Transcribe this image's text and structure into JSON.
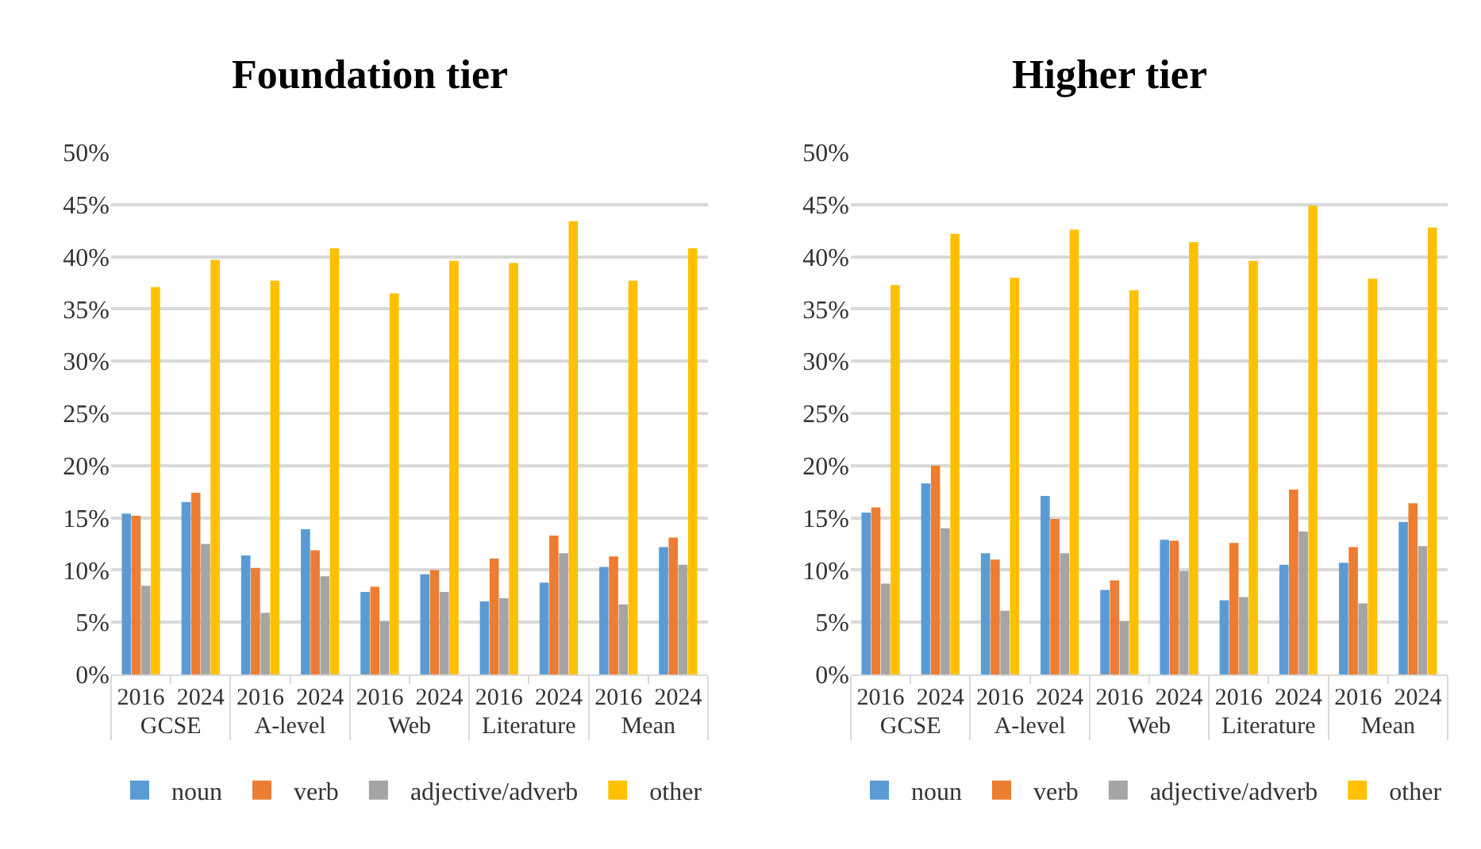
{
  "chart_data": [
    {
      "type": "bar",
      "title": "Foundation tier",
      "categories": [
        "2016",
        "2024",
        "2016",
        "2024",
        "2016",
        "2024",
        "2016",
        "2024",
        "2016",
        "2024"
      ],
      "annotations": [
        "GCSE",
        "A-level",
        "Web",
        "Literature",
        "Mean"
      ],
      "ylim": [
        0,
        50
      ],
      "yticks": [
        {
          "value": 0,
          "label": "0%"
        },
        {
          "value": 5,
          "label": "5%"
        },
        {
          "value": 10,
          "label": "10%"
        },
        {
          "value": 15,
          "label": "15%"
        },
        {
          "value": 20,
          "label": "20%"
        },
        {
          "value": 25,
          "label": "25%"
        },
        {
          "value": 30,
          "label": "30%"
        },
        {
          "value": 35,
          "label": "35%"
        },
        {
          "value": 40,
          "label": "40%"
        },
        {
          "value": 45,
          "label": "45%"
        },
        {
          "value": 50,
          "label": "50%"
        }
      ],
      "grid": "y",
      "legend": "bottom",
      "series": [
        {
          "name": "noun",
          "color": "#5b9bd5",
          "values": [
            15.4,
            16.5,
            11.4,
            13.9,
            7.9,
            9.6,
            7.0,
            8.8,
            10.3,
            12.2
          ]
        },
        {
          "name": "verb",
          "color": "#ed7d31",
          "values": [
            15.2,
            17.4,
            10.2,
            11.9,
            8.4,
            10.0,
            11.1,
            13.3,
            11.3,
            13.1
          ]
        },
        {
          "name": "adjective/adverb",
          "color": "#a5a5a5",
          "values": [
            8.5,
            12.5,
            5.9,
            9.4,
            5.1,
            7.9,
            7.3,
            11.6,
            6.7,
            10.5
          ]
        },
        {
          "name": "other",
          "color": "#ffc000",
          "values": [
            37.1,
            39.7,
            37.7,
            40.8,
            36.5,
            39.6,
            39.4,
            43.4,
            37.7,
            40.8
          ]
        }
      ]
    },
    {
      "type": "bar",
      "title": "Higher tier",
      "categories": [
        "2016",
        "2024",
        "2016",
        "2024",
        "2016",
        "2024",
        "2016",
        "2024",
        "2016",
        "2024"
      ],
      "annotations": [
        "GCSE",
        "A-level",
        "Web",
        "Literature",
        "Mean"
      ],
      "ylim": [
        0,
        50
      ],
      "yticks": [
        {
          "value": 0,
          "label": "0%"
        },
        {
          "value": 5,
          "label": "5%"
        },
        {
          "value": 10,
          "label": "10%"
        },
        {
          "value": 15,
          "label": "15%"
        },
        {
          "value": 20,
          "label": "20%"
        },
        {
          "value": 25,
          "label": "25%"
        },
        {
          "value": 30,
          "label": "30%"
        },
        {
          "value": 35,
          "label": "35%"
        },
        {
          "value": 40,
          "label": "40%"
        },
        {
          "value": 45,
          "label": "45%"
        },
        {
          "value": 50,
          "label": "50%"
        }
      ],
      "grid": "y",
      "legend": "bottom",
      "series": [
        {
          "name": "noun",
          "color": "#5b9bd5",
          "values": [
            15.5,
            18.3,
            11.6,
            17.1,
            8.1,
            12.9,
            7.1,
            10.5,
            10.7,
            14.6
          ]
        },
        {
          "name": "verb",
          "color": "#ed7d31",
          "values": [
            16.0,
            20.0,
            11.0,
            14.9,
            9.0,
            12.8,
            12.6,
            17.7,
            12.2,
            16.4
          ]
        },
        {
          "name": "adjective/adverb",
          "color": "#a5a5a5",
          "values": [
            8.7,
            14.0,
            6.1,
            11.6,
            5.1,
            9.9,
            7.4,
            13.7,
            6.8,
            12.3
          ]
        },
        {
          "name": "other",
          "color": "#ffc000",
          "values": [
            37.3,
            42.2,
            38.0,
            42.6,
            36.8,
            41.4,
            39.6,
            44.9,
            37.9,
            42.8
          ]
        }
      ]
    }
  ]
}
